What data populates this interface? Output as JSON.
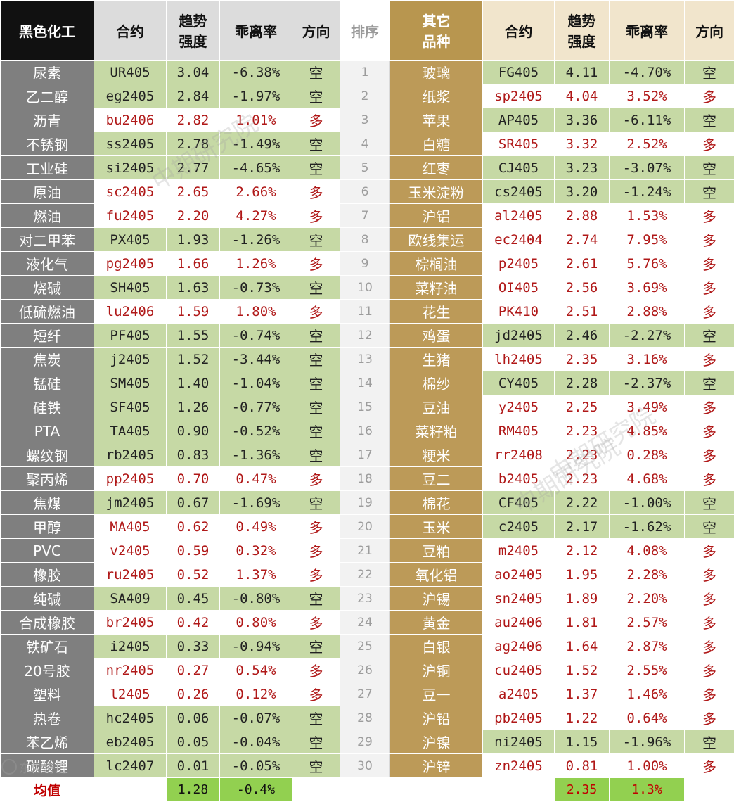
{
  "headers": {
    "left_group": "黑色化工",
    "contract": "合约",
    "trend_line1": "趋势",
    "trend_line2": "强度",
    "deviation": "乖离率",
    "direction": "方向",
    "rank": "排序",
    "right_group_line1": "其它",
    "right_group_line2": "品种"
  },
  "rows": [
    {
      "rank": "1",
      "left": {
        "name": "尿素",
        "code": "UR405",
        "strength": "3.04",
        "deviation": "-6.38%",
        "dir": "空"
      },
      "right": {
        "name": "玻璃",
        "code": "FG405",
        "strength": "4.11",
        "deviation": "-4.70%",
        "dir": "空"
      }
    },
    {
      "rank": "2",
      "left": {
        "name": "乙二醇",
        "code": "eg2405",
        "strength": "2.84",
        "deviation": "-1.97%",
        "dir": "空"
      },
      "right": {
        "name": "纸浆",
        "code": "sp2405",
        "strength": "4.04",
        "deviation": "3.52%",
        "dir": "多"
      }
    },
    {
      "rank": "3",
      "left": {
        "name": "沥青",
        "code": "bu2406",
        "strength": "2.82",
        "deviation": "1.01%",
        "dir": "多"
      },
      "right": {
        "name": "苹果",
        "code": "AP405",
        "strength": "3.36",
        "deviation": "-6.11%",
        "dir": "空"
      }
    },
    {
      "rank": "4",
      "left": {
        "name": "不锈钢",
        "code": "ss2405",
        "strength": "2.78",
        "deviation": "-1.49%",
        "dir": "空"
      },
      "right": {
        "name": "白糖",
        "code": "SR405",
        "strength": "3.32",
        "deviation": "2.52%",
        "dir": "多"
      }
    },
    {
      "rank": "5",
      "left": {
        "name": "工业硅",
        "code": "si2405",
        "strength": "2.77",
        "deviation": "-4.65%",
        "dir": "空"
      },
      "right": {
        "name": "红枣",
        "code": "CJ405",
        "strength": "3.23",
        "deviation": "-3.07%",
        "dir": "空"
      }
    },
    {
      "rank": "6",
      "left": {
        "name": "原油",
        "code": "sc2405",
        "strength": "2.65",
        "deviation": "2.66%",
        "dir": "多"
      },
      "right": {
        "name": "玉米淀粉",
        "code": "cs2405",
        "strength": "3.20",
        "deviation": "-1.24%",
        "dir": "空"
      }
    },
    {
      "rank": "7",
      "left": {
        "name": "燃油",
        "code": "fu2405",
        "strength": "2.20",
        "deviation": "4.27%",
        "dir": "多"
      },
      "right": {
        "name": "沪铝",
        "code": "al2405",
        "strength": "2.88",
        "deviation": "1.53%",
        "dir": "多"
      }
    },
    {
      "rank": "8",
      "left": {
        "name": "对二甲苯",
        "code": "PX405",
        "strength": "1.93",
        "deviation": "-1.26%",
        "dir": "空"
      },
      "right": {
        "name": "欧线集运",
        "code": "ec2404",
        "strength": "2.74",
        "deviation": "7.95%",
        "dir": "多"
      }
    },
    {
      "rank": "9",
      "left": {
        "name": "液化气",
        "code": "pg2405",
        "strength": "1.66",
        "deviation": "1.26%",
        "dir": "多"
      },
      "right": {
        "name": "棕榈油",
        "code": "p2405",
        "strength": "2.61",
        "deviation": "5.76%",
        "dir": "多"
      }
    },
    {
      "rank": "10",
      "left": {
        "name": "烧碱",
        "code": "SH405",
        "strength": "1.63",
        "deviation": "-0.73%",
        "dir": "空"
      },
      "right": {
        "name": "菜籽油",
        "code": "OI405",
        "strength": "2.56",
        "deviation": "3.69%",
        "dir": "多"
      }
    },
    {
      "rank": "11",
      "left": {
        "name": "低硫燃油",
        "code": "lu2406",
        "strength": "1.59",
        "deviation": "1.80%",
        "dir": "多"
      },
      "right": {
        "name": "花生",
        "code": "PK410",
        "strength": "2.51",
        "deviation": "2.88%",
        "dir": "多"
      }
    },
    {
      "rank": "12",
      "left": {
        "name": "短纤",
        "code": "PF405",
        "strength": "1.55",
        "deviation": "-0.74%",
        "dir": "空"
      },
      "right": {
        "name": "鸡蛋",
        "code": "jd2405",
        "strength": "2.46",
        "deviation": "-2.27%",
        "dir": "空"
      }
    },
    {
      "rank": "13",
      "left": {
        "name": "焦炭",
        "code": "j2405",
        "strength": "1.52",
        "deviation": "-3.44%",
        "dir": "空"
      },
      "right": {
        "name": "生猪",
        "code": "lh2405",
        "strength": "2.35",
        "deviation": "3.16%",
        "dir": "多"
      }
    },
    {
      "rank": "14",
      "left": {
        "name": "锰硅",
        "code": "SM405",
        "strength": "1.40",
        "deviation": "-1.04%",
        "dir": "空"
      },
      "right": {
        "name": "棉纱",
        "code": "CY405",
        "strength": "2.28",
        "deviation": "-2.37%",
        "dir": "空"
      }
    },
    {
      "rank": "15",
      "left": {
        "name": "硅铁",
        "code": "SF405",
        "strength": "1.26",
        "deviation": "-0.77%",
        "dir": "空"
      },
      "right": {
        "name": "豆油",
        "code": "y2405",
        "strength": "2.25",
        "deviation": "3.49%",
        "dir": "多"
      }
    },
    {
      "rank": "16",
      "left": {
        "name": "PTA",
        "code": "TA405",
        "strength": "0.90",
        "deviation": "-0.52%",
        "dir": "空"
      },
      "right": {
        "name": "菜籽粕",
        "code": "RM405",
        "strength": "2.23",
        "deviation": "4.85%",
        "dir": "多"
      }
    },
    {
      "rank": "17",
      "left": {
        "name": "螺纹钢",
        "code": "rb2405",
        "strength": "0.83",
        "deviation": "-1.36%",
        "dir": "空"
      },
      "right": {
        "name": "粳米",
        "code": "rr2408",
        "strength": "2.23",
        "deviation": "0.28%",
        "dir": "多"
      }
    },
    {
      "rank": "18",
      "left": {
        "name": "聚丙烯",
        "code": "pp2405",
        "strength": "0.70",
        "deviation": "0.47%",
        "dir": "多"
      },
      "right": {
        "name": "豆二",
        "code": "b2405",
        "strength": "2.23",
        "deviation": "4.68%",
        "dir": "多"
      }
    },
    {
      "rank": "19",
      "left": {
        "name": "焦煤",
        "code": "jm2405",
        "strength": "0.67",
        "deviation": "-1.69%",
        "dir": "空"
      },
      "right": {
        "name": "棉花",
        "code": "CF405",
        "strength": "2.22",
        "deviation": "-1.00%",
        "dir": "空"
      }
    },
    {
      "rank": "20",
      "left": {
        "name": "甲醇",
        "code": "MA405",
        "strength": "0.62",
        "deviation": "0.49%",
        "dir": "多"
      },
      "right": {
        "name": "玉米",
        "code": "c2405",
        "strength": "2.17",
        "deviation": "-1.62%",
        "dir": "空"
      }
    },
    {
      "rank": "21",
      "left": {
        "name": "PVC",
        "code": "v2405",
        "strength": "0.59",
        "deviation": "0.32%",
        "dir": "多"
      },
      "right": {
        "name": "豆粕",
        "code": "m2405",
        "strength": "2.12",
        "deviation": "4.08%",
        "dir": "多"
      }
    },
    {
      "rank": "22",
      "left": {
        "name": "橡胶",
        "code": "ru2405",
        "strength": "0.52",
        "deviation": "1.37%",
        "dir": "多"
      },
      "right": {
        "name": "氧化铝",
        "code": "ao2405",
        "strength": "1.95",
        "deviation": "2.28%",
        "dir": "多"
      }
    },
    {
      "rank": "23",
      "left": {
        "name": "纯碱",
        "code": "SA409",
        "strength": "0.45",
        "deviation": "-0.80%",
        "dir": "空"
      },
      "right": {
        "name": "沪锡",
        "code": "sn2405",
        "strength": "1.89",
        "deviation": "2.20%",
        "dir": "多"
      }
    },
    {
      "rank": "24",
      "left": {
        "name": "合成橡胶",
        "code": "br2405",
        "strength": "0.42",
        "deviation": "0.80%",
        "dir": "多"
      },
      "right": {
        "name": "黄金",
        "code": "au2406",
        "strength": "1.81",
        "deviation": "2.57%",
        "dir": "多"
      }
    },
    {
      "rank": "25",
      "left": {
        "name": "铁矿石",
        "code": "i2405",
        "strength": "0.33",
        "deviation": "-0.94%",
        "dir": "空"
      },
      "right": {
        "name": "白银",
        "code": "ag2406",
        "strength": "1.64",
        "deviation": "2.87%",
        "dir": "多"
      }
    },
    {
      "rank": "26",
      "left": {
        "name": "20号胶",
        "code": "nr2405",
        "strength": "0.27",
        "deviation": "0.54%",
        "dir": "多"
      },
      "right": {
        "name": "沪铜",
        "code": "cu2405",
        "strength": "1.52",
        "deviation": "2.55%",
        "dir": "多"
      }
    },
    {
      "rank": "27",
      "left": {
        "name": "塑料",
        "code": "l2405",
        "strength": "0.26",
        "deviation": "0.12%",
        "dir": "多"
      },
      "right": {
        "name": "豆一",
        "code": "a2405",
        "strength": "1.37",
        "deviation": "1.46%",
        "dir": "多"
      }
    },
    {
      "rank": "28",
      "left": {
        "name": "热卷",
        "code": "hc2405",
        "strength": "0.06",
        "deviation": "-0.07%",
        "dir": "空"
      },
      "right": {
        "name": "沪铅",
        "code": "pb2405",
        "strength": "1.22",
        "deviation": "0.64%",
        "dir": "多"
      }
    },
    {
      "rank": "29",
      "left": {
        "name": "苯乙烯",
        "code": "eb2405",
        "strength": "0.05",
        "deviation": "-0.04%",
        "dir": "空"
      },
      "right": {
        "name": "沪镍",
        "code": "ni2405",
        "strength": "1.15",
        "deviation": "-1.96%",
        "dir": "空"
      }
    },
    {
      "rank": "30",
      "left": {
        "name": "碳酸锂",
        "code": "lc2407",
        "strength": "0.01",
        "deviation": "-0.05%",
        "dir": "空"
      },
      "right": {
        "name": "沪锌",
        "code": "zn2405",
        "strength": "0.81",
        "deviation": "1.00%",
        "dir": "多"
      }
    }
  ],
  "footer": {
    "label": "均值",
    "left_avg_strength": "1.28",
    "left_avg_deviation": "-0.4%",
    "right_avg_strength": "2.35",
    "right_avg_deviation": "1.3%"
  },
  "colors": {
    "short_row": "#c6d9a5",
    "long_text": "#b01818",
    "average_highlight": "#92d050"
  },
  "watermarks": [
    "中期研究院",
    "中期研究院",
    "中期研究院"
  ],
  "logo_text": "东恒跨境"
}
